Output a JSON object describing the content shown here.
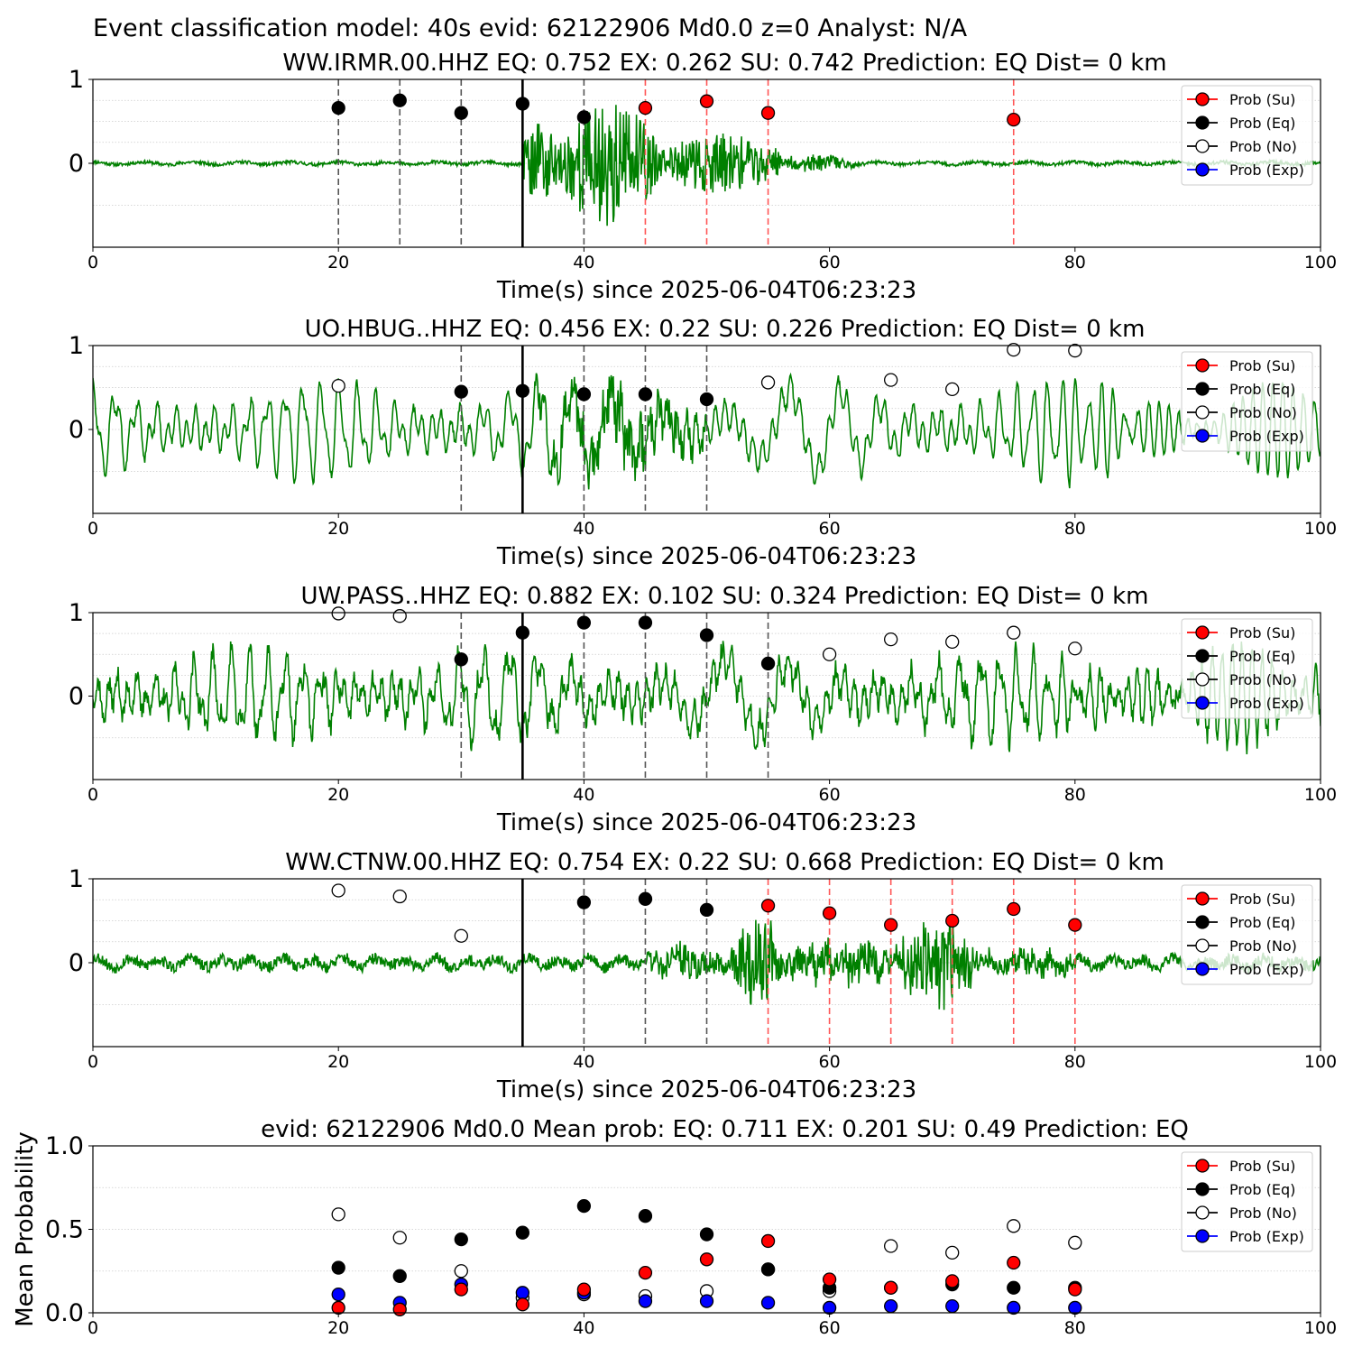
{
  "figure_title": "Event classification model: 40s evid: 62122906 Md0.0 z=0 Analyst: N/A",
  "legend_items": [
    {
      "label": "Prob (Su)",
      "color": "#ff0000",
      "filled": true
    },
    {
      "label": "Prob (Eq)",
      "color": "#000000",
      "filled": true
    },
    {
      "label": "Prob (No)",
      "color": "#ffffff",
      "filled": false
    },
    {
      "label": "Prob (Exp)",
      "color": "#0000ff",
      "filled": true
    }
  ],
  "colors": {
    "trace": "#008000",
    "su": "#ff0000",
    "eq": "#000000",
    "exp": "#0000ff",
    "no_fill": "#ffffff"
  },
  "chart_data": [
    {
      "type": "line",
      "title": "WW.IRMR.00.HHZ   EQ: 0.752  EX: 0.262  SU: 0.742   Prediction: EQ    Dist= 0 km",
      "xlabel": "Time(s) since 2025-06-04T06:23:23",
      "ylabel": "",
      "xlim": [
        0,
        100
      ],
      "ylim": [
        -1,
        1
      ],
      "xticks": [
        "0",
        "20",
        "40",
        "60",
        "80",
        "100"
      ],
      "yticks": [
        "0",
        "1"
      ],
      "grid": "horizontal dotted",
      "legend": "top-right",
      "pick_time": 35,
      "window_lines": [
        {
          "x": 20,
          "class": "eq"
        },
        {
          "x": 25,
          "class": "eq"
        },
        {
          "x": 30,
          "class": "eq"
        },
        {
          "x": 40,
          "class": "eq"
        },
        {
          "x": 45,
          "class": "su"
        },
        {
          "x": 50,
          "class": "su"
        },
        {
          "x": 55,
          "class": "su"
        },
        {
          "x": 75,
          "class": "su"
        }
      ],
      "series": [
        {
          "name": "Prob (Eq)",
          "points": [
            [
              20,
              0.66
            ],
            [
              25,
              0.75
            ],
            [
              30,
              0.6
            ],
            [
              35,
              0.71
            ],
            [
              40,
              0.55
            ]
          ]
        },
        {
          "name": "Prob (Su)",
          "points": [
            [
              45,
              0.66
            ],
            [
              50,
              0.74
            ],
            [
              55,
              0.6
            ],
            [
              75,
              0.52
            ]
          ]
        }
      ],
      "waveform": {
        "style": "event",
        "noise": 0.02,
        "segments": [
          [
            35,
            38,
            0.55
          ],
          [
            38,
            46,
            0.75
          ],
          [
            46,
            56,
            0.35
          ],
          [
            56,
            62,
            0.1
          ]
        ],
        "seed": 11
      }
    },
    {
      "type": "line",
      "title": "UO.HBUG..HHZ   EQ: 0.456  EX: 0.22  SU: 0.226   Prediction: EQ    Dist= 0 km",
      "xlabel": "Time(s) since 2025-06-04T06:23:23",
      "ylabel": "",
      "xlim": [
        0,
        100
      ],
      "ylim": [
        -1,
        1
      ],
      "xticks": [
        "0",
        "20",
        "40",
        "60",
        "80",
        "100"
      ],
      "yticks": [
        "0",
        "1"
      ],
      "grid": "horizontal dotted",
      "legend": "top-right",
      "pick_time": 35,
      "window_lines": [
        {
          "x": 30,
          "class": "eq"
        },
        {
          "x": 40,
          "class": "eq"
        },
        {
          "x": 45,
          "class": "eq"
        },
        {
          "x": 50,
          "class": "eq"
        }
      ],
      "series": [
        {
          "name": "Prob (No)",
          "points": [
            [
              20,
              0.52
            ],
            [
              55,
              0.56
            ],
            [
              65,
              0.59
            ],
            [
              70,
              0.48
            ],
            [
              75,
              0.95
            ],
            [
              80,
              0.94
            ]
          ]
        },
        {
          "name": "Prob (Eq)",
          "points": [
            [
              30,
              0.45
            ],
            [
              35,
              0.46
            ],
            [
              40,
              0.42
            ],
            [
              45,
              0.42
            ],
            [
              50,
              0.36
            ]
          ]
        }
      ],
      "waveform": {
        "style": "oscillating",
        "base": 0.5,
        "noise": 0.04,
        "segments": [
          [
            36,
            50,
            0.3
          ]
        ],
        "seed": 23
      }
    },
    {
      "type": "line",
      "title": "UW.PASS..HHZ   EQ: 0.882  EX: 0.102  SU: 0.324   Prediction: EQ    Dist= 0 km",
      "xlabel": "Time(s) since 2025-06-04T06:23:23",
      "ylabel": "",
      "xlim": [
        0,
        100
      ],
      "ylim": [
        -1,
        1
      ],
      "xticks": [
        "0",
        "20",
        "40",
        "60",
        "80",
        "100"
      ],
      "yticks": [
        "0",
        "1"
      ],
      "grid": "horizontal dotted",
      "legend": "top-right",
      "pick_time": 35,
      "window_lines": [
        {
          "x": 30,
          "class": "eq"
        },
        {
          "x": 40,
          "class": "eq"
        },
        {
          "x": 45,
          "class": "eq"
        },
        {
          "x": 50,
          "class": "eq"
        },
        {
          "x": 55,
          "class": "eq"
        }
      ],
      "series": [
        {
          "name": "Prob (No)",
          "points": [
            [
              20,
              0.99
            ],
            [
              25,
              0.96
            ],
            [
              60,
              0.5
            ],
            [
              65,
              0.68
            ],
            [
              70,
              0.65
            ],
            [
              75,
              0.76
            ],
            [
              80,
              0.57
            ]
          ]
        },
        {
          "name": "Prob (Eq)",
          "points": [
            [
              30,
              0.44
            ],
            [
              35,
              0.76
            ],
            [
              40,
              0.88
            ],
            [
              45,
              0.88
            ],
            [
              50,
              0.73
            ],
            [
              55,
              0.39
            ]
          ]
        }
      ],
      "waveform": {
        "style": "oscillating",
        "base": 0.45,
        "noise": 0.12,
        "segments": [],
        "seed": 37
      }
    },
    {
      "type": "line",
      "title": "WW.CTNW.00.HHZ   EQ: 0.754  EX: 0.22  SU: 0.668   Prediction: EQ    Dist= 0 km",
      "xlabel": "Time(s) since 2025-06-04T06:23:23",
      "ylabel": "",
      "xlim": [
        0,
        100
      ],
      "ylim": [
        -1,
        1
      ],
      "xticks": [
        "0",
        "20",
        "40",
        "60",
        "80",
        "100"
      ],
      "yticks": [
        "0",
        "1"
      ],
      "grid": "horizontal dotted",
      "legend": "top-right",
      "pick_time": 35,
      "window_lines": [
        {
          "x": 40,
          "class": "eq"
        },
        {
          "x": 45,
          "class": "eq"
        },
        {
          "x": 50,
          "class": "eq"
        },
        {
          "x": 55,
          "class": "su"
        },
        {
          "x": 60,
          "class": "su"
        },
        {
          "x": 65,
          "class": "su"
        },
        {
          "x": 70,
          "class": "su"
        },
        {
          "x": 75,
          "class": "su"
        },
        {
          "x": 80,
          "class": "su"
        }
      ],
      "series": [
        {
          "name": "Prob (No)",
          "points": [
            [
              20,
              0.86
            ],
            [
              25,
              0.79
            ],
            [
              30,
              0.32
            ]
          ]
        },
        {
          "name": "Prob (Eq)",
          "points": [
            [
              40,
              0.72
            ],
            [
              45,
              0.76
            ],
            [
              50,
              0.63
            ]
          ]
        },
        {
          "name": "Prob (Su)",
          "points": [
            [
              55,
              0.68
            ],
            [
              60,
              0.59
            ],
            [
              65,
              0.45
            ],
            [
              70,
              0.5
            ],
            [
              75,
              0.64
            ],
            [
              80,
              0.45
            ]
          ]
        }
      ],
      "waveform": {
        "style": "event",
        "noise": 0.07,
        "segments": [
          [
            45,
            52,
            0.2
          ],
          [
            52,
            56,
            0.55
          ],
          [
            56,
            66,
            0.25
          ],
          [
            66,
            72,
            0.5
          ],
          [
            72,
            80,
            0.15
          ]
        ],
        "seed": 53
      }
    },
    {
      "type": "scatter",
      "title": "evid: 62122906  Md0.0   Mean prob:   EQ: 0.711  EX: 0.201  SU: 0.49   Prediction: EQ",
      "xlabel": "",
      "ylabel": "Mean Probability",
      "xlim": [
        0,
        100
      ],
      "ylim": [
        0,
        1
      ],
      "xticks": [
        "0",
        "20",
        "40",
        "60",
        "80",
        "100"
      ],
      "yticks": [
        "0.0",
        "0.5",
        "1.0"
      ],
      "grid": "horizontal dotted",
      "legend": "top-right",
      "series": [
        {
          "name": "Prob (No)",
          "points": [
            [
              20,
              0.59
            ],
            [
              25,
              0.45
            ],
            [
              30,
              0.25
            ],
            [
              35,
              0.09
            ],
            [
              40,
              0.11
            ],
            [
              45,
              0.1
            ],
            [
              50,
              0.13
            ],
            [
              55,
              0.26
            ],
            [
              60,
              0.13
            ],
            [
              65,
              0.4
            ],
            [
              70,
              0.36
            ],
            [
              75,
              0.52
            ],
            [
              80,
              0.42
            ]
          ]
        },
        {
          "name": "Prob (Exp)",
          "points": [
            [
              20,
              0.11
            ],
            [
              25,
              0.06
            ],
            [
              30,
              0.17
            ],
            [
              35,
              0.12
            ],
            [
              40,
              0.12
            ],
            [
              45,
              0.07
            ],
            [
              50,
              0.07
            ],
            [
              55,
              0.06
            ],
            [
              60,
              0.03
            ],
            [
              65,
              0.04
            ],
            [
              70,
              0.04
            ],
            [
              75,
              0.03
            ],
            [
              80,
              0.03
            ]
          ]
        },
        {
          "name": "Prob (Eq)",
          "points": [
            [
              20,
              0.27
            ],
            [
              25,
              0.22
            ],
            [
              30,
              0.44
            ],
            [
              35,
              0.48
            ],
            [
              40,
              0.64
            ],
            [
              45,
              0.58
            ],
            [
              50,
              0.47
            ],
            [
              55,
              0.26
            ],
            [
              60,
              0.15
            ],
            [
              65,
              0.15
            ],
            [
              70,
              0.17
            ],
            [
              75,
              0.15
            ],
            [
              80,
              0.15
            ]
          ]
        },
        {
          "name": "Prob (Su)",
          "points": [
            [
              20,
              0.03
            ],
            [
              25,
              0.02
            ],
            [
              30,
              0.14
            ],
            [
              35,
              0.05
            ],
            [
              40,
              0.14
            ],
            [
              45,
              0.24
            ],
            [
              50,
              0.32
            ],
            [
              55,
              0.43
            ],
            [
              60,
              0.2
            ],
            [
              65,
              0.15
            ],
            [
              70,
              0.19
            ],
            [
              75,
              0.3
            ],
            [
              80,
              0.14
            ]
          ]
        }
      ]
    }
  ]
}
